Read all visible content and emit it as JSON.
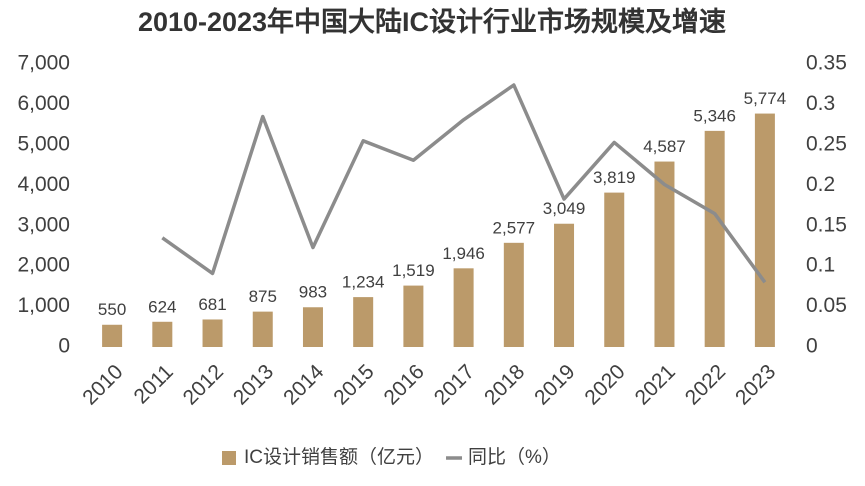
{
  "chart_data": {
    "type": "bar-line",
    "title": "2010-2023年中国大陆IC设计行业市场规模及增速",
    "categories": [
      "2010",
      "2011",
      "2012",
      "2013",
      "2014",
      "2015",
      "2016",
      "2017",
      "2018",
      "2019",
      "2020",
      "2021",
      "2022",
      "2023"
    ],
    "series": [
      {
        "name": "IC设计销售额（亿元）",
        "type": "bar",
        "color": "#bb9a6a",
        "values": [
          550,
          624,
          681,
          875,
          983,
          1234,
          1519,
          1946,
          2577,
          3049,
          3819,
          4587,
          5346,
          5774
        ],
        "value_labels": [
          "550",
          "624",
          "681",
          "875",
          "983",
          "1,234",
          "1,519",
          "1,946",
          "2,577",
          "3,049",
          "3,819",
          "4,587",
          "5,346",
          "5,774"
        ]
      },
      {
        "name": "同比（%）",
        "type": "line",
        "axis": "y2",
        "color": "#8c8c8c",
        "values": [
          null,
          0.135,
          0.091,
          0.285,
          0.123,
          0.255,
          0.231,
          0.281,
          0.324,
          0.183,
          0.253,
          0.201,
          0.165,
          0.08
        ]
      }
    ],
    "ylim": [
      0,
      7000
    ],
    "yticks": [
      0,
      {
        "value": 1000,
        "label": "1,000"
      },
      {
        "value": 2000,
        "label": "2,000"
      },
      {
        "value": 3000,
        "label": "3,000"
      },
      {
        "value": 4000,
        "label": "4,000"
      },
      {
        "value": 5000,
        "label": "5,000"
      },
      {
        "value": 6000,
        "label": "6,000"
      },
      {
        "value": 7000,
        "label": "7,000"
      }
    ],
    "y2lim": [
      0,
      0.35
    ],
    "y2ticks": [
      0,
      0.05,
      0.1,
      0.15,
      0.2,
      0.25,
      0.3,
      0.35
    ],
    "grid": false,
    "legend": "bottom"
  }
}
